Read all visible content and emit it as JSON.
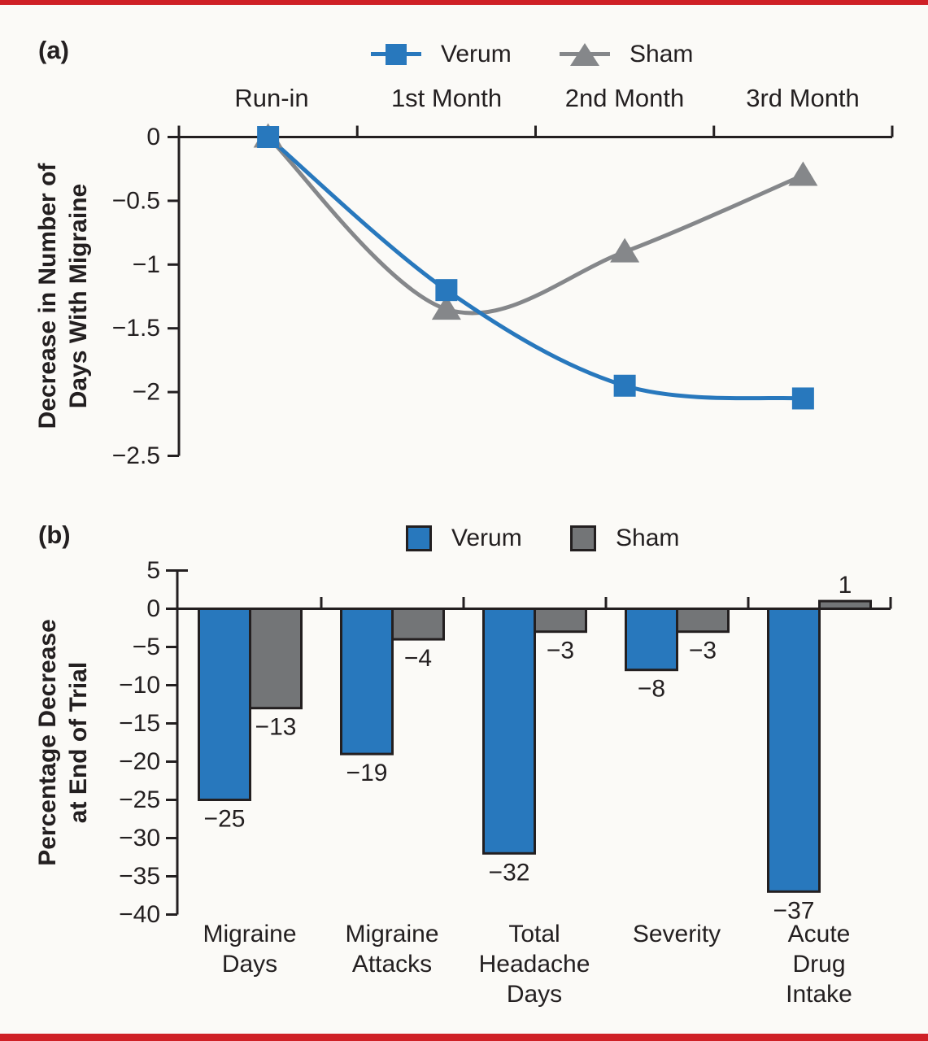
{
  "accents": {
    "rule_red": "#CF2026",
    "axis_black": "#231F20",
    "background": "#FBFAF7",
    "verum_blue": "#2878BD",
    "sham_gray_line": "#85878A",
    "sham_gray_bar": "#737577"
  },
  "panels": {
    "a": "(a)",
    "b": "(b)"
  },
  "chart_data": [
    {
      "type": "line",
      "panel": "(a)",
      "categories": [
        "Run-in",
        "1st Month",
        "2nd Month",
        "3rd Month"
      ],
      "series": [
        {
          "name": "Verum",
          "marker": "square",
          "color": "#2878BD",
          "values": [
            0,
            -1.2,
            -1.95,
            -2.05
          ]
        },
        {
          "name": "Sham",
          "marker": "triangle",
          "color": "#85878A",
          "values": [
            0,
            -1.35,
            -0.9,
            -0.3
          ]
        }
      ],
      "ylabel": "Decrease in Number of\nDays With Migraine",
      "ylim": [
        -2.5,
        0
      ],
      "yticks": {
        "values": [
          0,
          -0.5,
          -1,
          -1.5,
          -2,
          -2.5
        ],
        "labels": [
          "0",
          "−0.5",
          "−1",
          "−1.5",
          "−2",
          "−2.5"
        ]
      },
      "legend_position": "top",
      "grid": false,
      "x_axis_position": "top"
    },
    {
      "type": "bar",
      "panel": "(b)",
      "categories": [
        "Migraine\nDays",
        "Migraine\nAttacks",
        "Total\nHeadache\nDays",
        "Severity",
        "Acute Drug\nIntake"
      ],
      "series": [
        {
          "name": "Verum",
          "color": "#2878BD",
          "values": [
            -25,
            -19,
            -32,
            -8,
            -37
          ],
          "labels": [
            "−25",
            "−19",
            "−32",
            "−8",
            "−37"
          ]
        },
        {
          "name": "Sham",
          "color": "#737577",
          "values": [
            -13,
            -4,
            -3,
            -3,
            1
          ],
          "labels": [
            "−13",
            "−4",
            "−3",
            "−3",
            "1"
          ]
        }
      ],
      "ylabel": "Percentage Decrease\nat End of Trial",
      "ylim": [
        -40,
        5
      ],
      "yticks": {
        "values": [
          5,
          0,
          -5,
          -10,
          -15,
          -20,
          -25,
          -30,
          -35,
          -40
        ],
        "labels": [
          "5",
          "0",
          "−5",
          "−10",
          "−15",
          "−20",
          "−25",
          "−30",
          "−35",
          "−40"
        ]
      },
      "bar_outline": "#231F20",
      "legend_position": "top",
      "grid": false
    }
  ]
}
